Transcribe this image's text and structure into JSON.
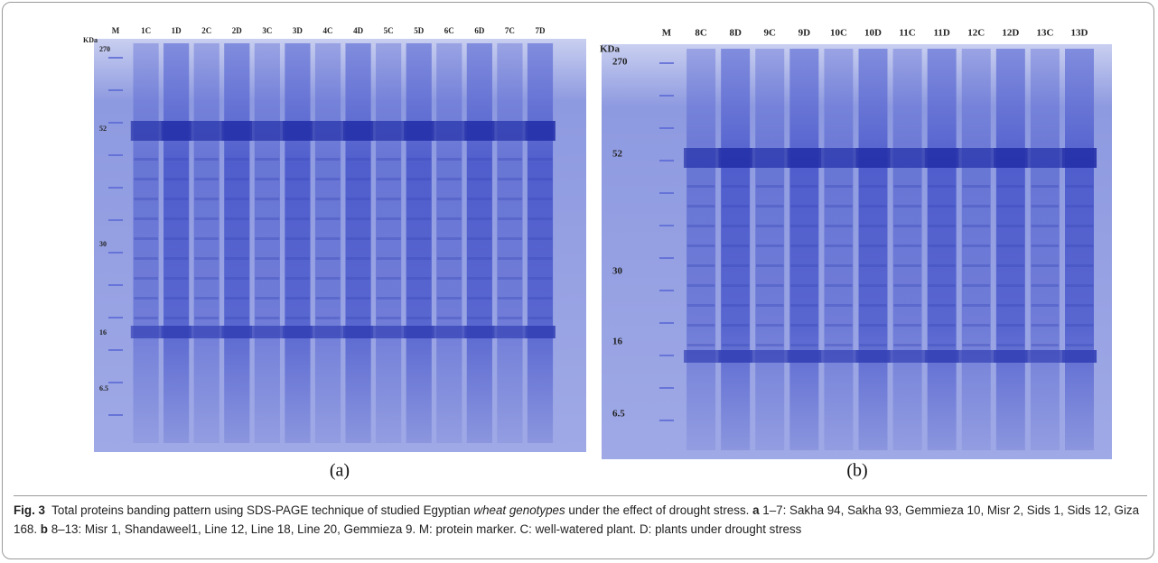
{
  "figure": {
    "panels": [
      {
        "label": "(a)",
        "unit": "KDa",
        "markers": [
          "270",
          "52",
          "30",
          "16",
          "6.5"
        ],
        "lanes": [
          "M",
          "1C",
          "1D",
          "2C",
          "2D",
          "3C",
          "3D",
          "4C",
          "4D",
          "5C",
          "5D",
          "6C",
          "6D",
          "7C",
          "7D"
        ]
      },
      {
        "label": "(b)",
        "unit": "KDa",
        "markers": [
          "270",
          "52",
          "30",
          "16",
          "6.5"
        ],
        "lanes": [
          "M",
          "8C",
          "8D",
          "9C",
          "9D",
          "10C",
          "10D",
          "11C",
          "11D",
          "12C",
          "12D",
          "13C",
          "13D"
        ]
      }
    ],
    "caption": {
      "fig_label": "Fig. 3",
      "text1": "Total proteins banding pattern using SDS-PAGE technique of studied Egyptian ",
      "italic": "wheat genotypes",
      "text2": " under the effect of drought stress. ",
      "a_label": "a",
      "text3": " 1–7: Sakha 94, Sakha 93, Gemmieza 10, Misr 2, Sids 1, Sids 12, Giza 168. ",
      "b_label": "b",
      "text4": " 8–13: Misr 1, Shandaweel1, Line 12, Line 18, Line 20, Gemmieza 9. M: protein marker. C: well-watered plant. D: plants under drought stress"
    }
  }
}
